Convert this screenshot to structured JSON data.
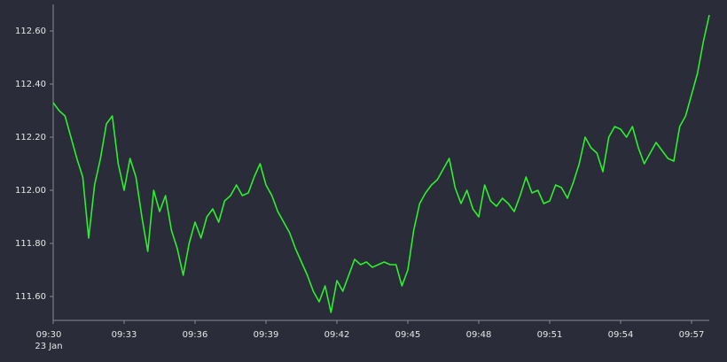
{
  "chart_data": {
    "type": "line",
    "color": "#2bf02b",
    "categories": [
      "09:30",
      null,
      null,
      null,
      null,
      null,
      null,
      null,
      null,
      null,
      null,
      null,
      "09:33",
      null,
      null,
      null,
      null,
      null,
      null,
      null,
      null,
      null,
      null,
      null,
      "09:36",
      null,
      null,
      null,
      null,
      null,
      null,
      null,
      null,
      null,
      null,
      null,
      "09:39",
      null,
      null,
      null,
      null,
      null,
      null,
      null,
      null,
      null,
      null,
      null,
      "09:42",
      null,
      null,
      null,
      null,
      null,
      null,
      null,
      null,
      null,
      null,
      null,
      "09:45",
      null,
      null,
      null,
      null,
      null,
      null,
      null,
      null,
      null,
      null,
      null,
      "09:48",
      null,
      null,
      null,
      null,
      null,
      null,
      null,
      null,
      null,
      null,
      null,
      "09:51",
      null,
      null,
      null,
      null,
      null,
      null,
      null,
      null,
      null,
      null,
      null,
      "09:54",
      null,
      null,
      null,
      null,
      null,
      null,
      null,
      null,
      null,
      null,
      null,
      "09:57",
      null,
      null,
      null
    ],
    "date_label": "23 Jan",
    "values": [
      112.33,
      112.3,
      112.28,
      112.2,
      112.12,
      112.05,
      111.82,
      112.02,
      112.12,
      112.25,
      112.28,
      112.1,
      112.0,
      112.12,
      112.05,
      111.9,
      111.77,
      112.0,
      111.92,
      111.98,
      111.85,
      111.78,
      111.68,
      111.8,
      111.88,
      111.82,
      111.9,
      111.93,
      111.88,
      111.96,
      111.98,
      112.02,
      111.98,
      111.99,
      112.05,
      112.1,
      112.02,
      111.98,
      111.92,
      111.88,
      111.84,
      111.78,
      111.73,
      111.68,
      111.62,
      111.58,
      111.64,
      111.54,
      111.66,
      111.62,
      111.68,
      111.74,
      111.72,
      111.73,
      111.71,
      111.72,
      111.73,
      111.72,
      111.72,
      111.64,
      111.7,
      111.85,
      111.95,
      111.99,
      112.02,
      112.04,
      112.08,
      112.12,
      112.01,
      111.95,
      112.0,
      111.93,
      111.9,
      112.02,
      111.96,
      111.94,
      111.97,
      111.95,
      111.92,
      111.98,
      112.05,
      111.99,
      112.0,
      111.95,
      111.96,
      112.02,
      112.01,
      111.97,
      112.03,
      112.1,
      112.2,
      112.16,
      112.14,
      112.07,
      112.2,
      112.24,
      112.23,
      112.2,
      112.24,
      112.16,
      112.1,
      112.14,
      112.18,
      112.15,
      112.12,
      112.11,
      112.24,
      112.28,
      112.36,
      112.44,
      112.56,
      112.66
    ],
    "ylim": [
      111.51,
      112.7
    ],
    "yticks": [
      {
        "value": 111.6,
        "label": "111.60"
      },
      {
        "value": 111.8,
        "label": "111.80"
      },
      {
        "value": 112.0,
        "label": "112.00"
      },
      {
        "value": 112.2,
        "label": "112.20"
      },
      {
        "value": 112.4,
        "label": "112.40"
      },
      {
        "value": 112.6,
        "label": "112.60"
      }
    ]
  }
}
